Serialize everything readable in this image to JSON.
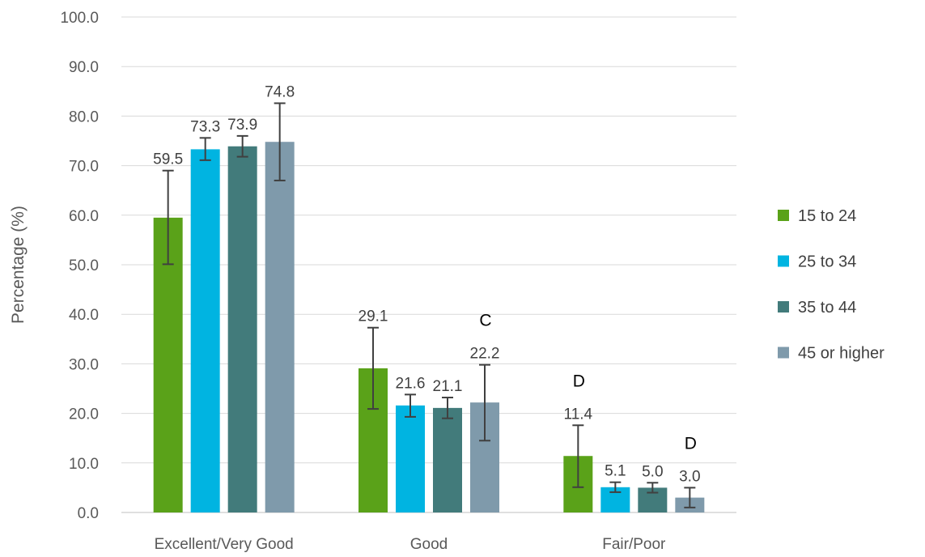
{
  "chart_data": {
    "type": "bar",
    "title": "",
    "xlabel": "",
    "ylabel": "Percentage (%)",
    "ylim": [
      0,
      100
    ],
    "ytick_step": 10,
    "ytick_decimals": 1,
    "grid": true,
    "legend_position": "right",
    "categories": [
      "Excellent/Very Good",
      "Good",
      "Fair/Poor"
    ],
    "series": [
      {
        "name": "15 to 24",
        "color": "#5aa219",
        "values": [
          59.5,
          29.1,
          11.4
        ],
        "error_low": [
          50.1,
          20.9,
          5.1
        ],
        "error_high": [
          69.0,
          37.3,
          17.6
        ],
        "value_labels": [
          "59.5",
          "29.1",
          "11.4"
        ],
        "notes": [
          "",
          "",
          "D"
        ]
      },
      {
        "name": "25 to 34",
        "color": "#00b4e1",
        "values": [
          73.3,
          21.6,
          5.1
        ],
        "error_low": [
          71.1,
          19.3,
          4.1
        ],
        "error_high": [
          75.6,
          23.8,
          6.1
        ],
        "value_labels": [
          "73.3",
          "21.6",
          "5.1"
        ],
        "notes": [
          "",
          "",
          ""
        ]
      },
      {
        "name": "35 to 44",
        "color": "#427b7b",
        "values": [
          73.9,
          21.1,
          5.0
        ],
        "error_low": [
          71.8,
          19.0,
          4.0
        ],
        "error_high": [
          76.0,
          23.2,
          6.0
        ],
        "value_labels": [
          "73.9",
          "21.1",
          "5.0"
        ],
        "notes": [
          "",
          "",
          ""
        ]
      },
      {
        "name": "45 or higher",
        "color": "#7f9aab",
        "values": [
          74.8,
          22.2,
          3.0
        ],
        "error_low": [
          67.0,
          14.5,
          1.0
        ],
        "error_high": [
          82.6,
          29.8,
          5.0
        ],
        "value_labels": [
          "74.8",
          "22.2",
          "3.0"
        ],
        "notes": [
          "",
          "C",
          "D"
        ]
      }
    ]
  }
}
